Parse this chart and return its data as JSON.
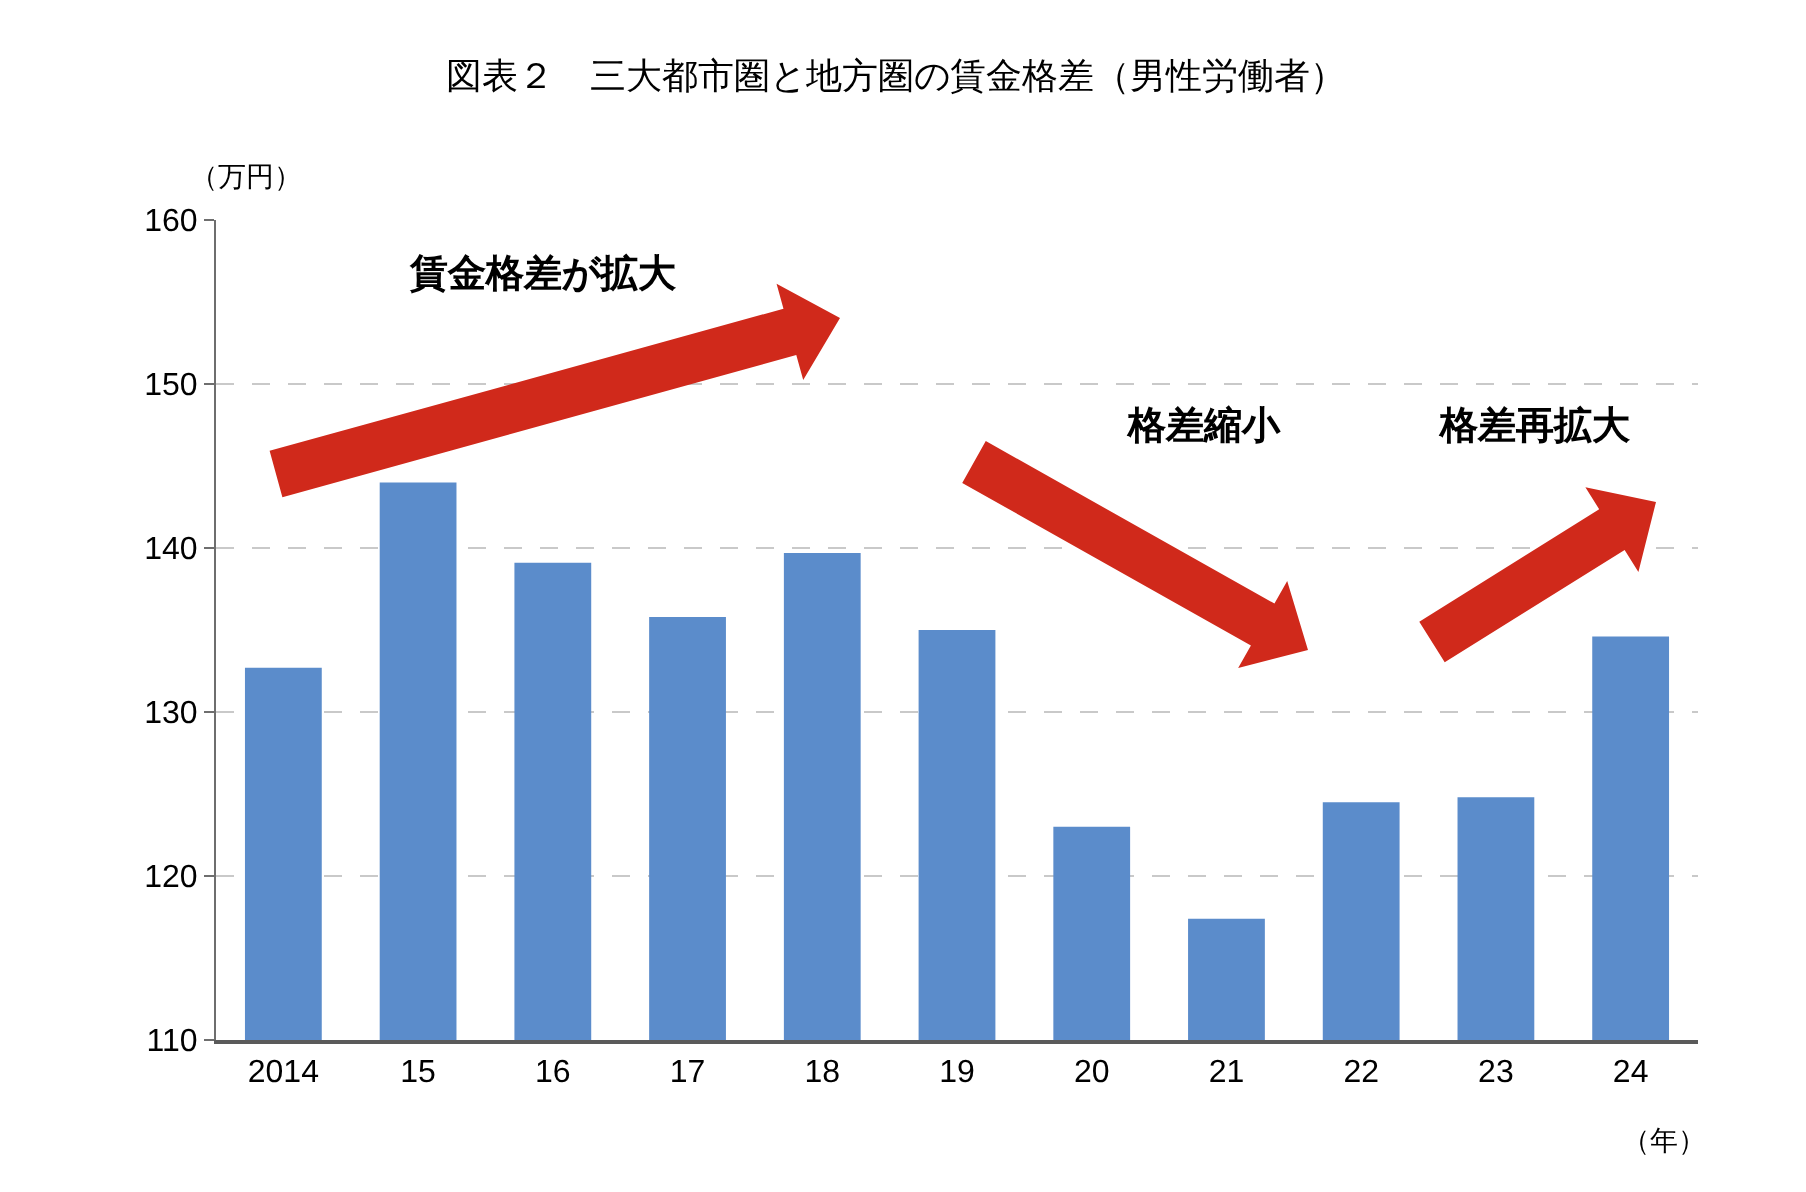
{
  "chart_data": {
    "type": "bar",
    "title": "図表２　三大都市圏と地方圏の賃金格差（男性労働者）",
    "xlabel": "（年）",
    "ylabel": "（万円）",
    "categories": [
      "2014",
      "15",
      "16",
      "17",
      "18",
      "19",
      "20",
      "21",
      "22",
      "23",
      "24"
    ],
    "values": [
      132.7,
      144.0,
      139.1,
      135.8,
      139.7,
      135.0,
      123.0,
      117.4,
      124.5,
      124.8,
      134.6
    ],
    "color": "#5b8ccb",
    "ylim": [
      110,
      160
    ],
    "yticks": [
      110,
      120,
      130,
      140,
      150,
      160
    ],
    "grid": "y",
    "annotations": [
      "賃金格差が拡大",
      "格差縮小",
      "格差再拡大"
    ]
  }
}
